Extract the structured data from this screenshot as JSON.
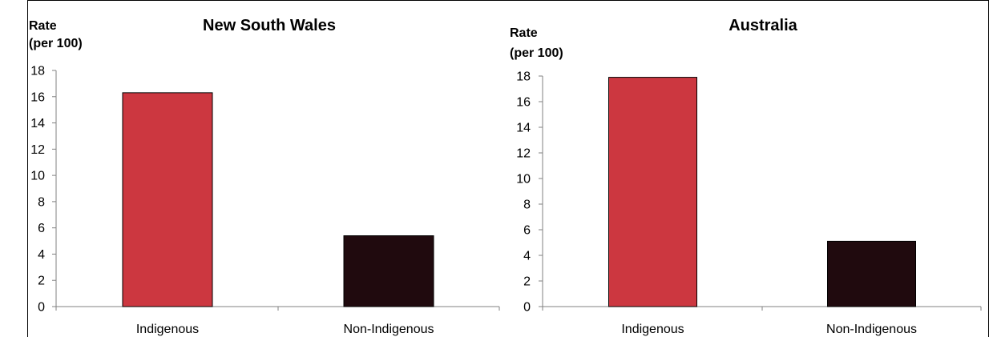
{
  "chart_data": [
    {
      "type": "bar",
      "title": "New South Wales",
      "ylabel_lines": [
        "Rate",
        "(per 100)"
      ],
      "categories": [
        "Indigenous",
        "Non-Indigenous"
      ],
      "values": [
        16.3,
        5.4
      ],
      "bar_colors": [
        "#cc3740",
        "#200a0e"
      ],
      "ylim": [
        0,
        18
      ],
      "yticks": [
        "0",
        "2",
        "4",
        "6",
        "8",
        "10",
        "12",
        "14",
        "16",
        "18"
      ],
      "grid": false,
      "legend": "none"
    },
    {
      "type": "bar",
      "title": "Australia",
      "ylabel_lines": [
        "Rate",
        "(per 100)"
      ],
      "categories": [
        "Indigenous",
        "Non-Indigenous"
      ],
      "values": [
        17.9,
        5.1
      ],
      "bar_colors": [
        "#cc3740",
        "#200a0e"
      ],
      "ylim": [
        0,
        18
      ],
      "yticks": [
        "0",
        "2",
        "4",
        "6",
        "8",
        "10",
        "12",
        "14",
        "16",
        "18"
      ],
      "grid": false,
      "legend": "none"
    }
  ]
}
